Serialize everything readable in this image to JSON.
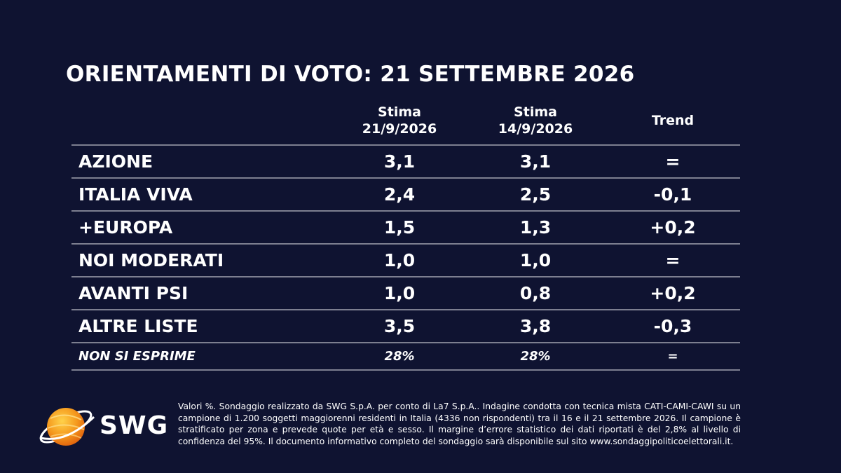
{
  "title": "ORIENTAMENTI DI VOTO: 21 SETTEMBRE 2026",
  "headers": {
    "col1_line1": "Stima",
    "col1_line2": "21/9/2026",
    "col2_line1": "Stima",
    "col2_line2": "14/9/2026",
    "col3": "Trend"
  },
  "rows": [
    {
      "name": "AZIONE",
      "current": "3,1",
      "previous": "3,1",
      "trend": "="
    },
    {
      "name": "ITALIA VIVA",
      "current": "2,4",
      "previous": "2,5",
      "trend": "-0,1"
    },
    {
      "name": "+EUROPA",
      "current": "1,5",
      "previous": "1,3",
      "trend": "+0,2"
    },
    {
      "name": "NOI MODERATI",
      "current": "1,0",
      "previous": "1,0",
      "trend": "="
    },
    {
      "name": "AVANTI PSI",
      "current": "1,0",
      "previous": "0,8",
      "trend": "+0,2"
    },
    {
      "name": "ALTRE LISTE",
      "current": "3,5",
      "previous": "3,8",
      "trend": "-0,3"
    },
    {
      "name": "NON SI ESPRIME",
      "current": "28%",
      "previous": "28%",
      "trend": "="
    }
  ],
  "logo": {
    "text": "SWG",
    "icon": "swg-globe-icon",
    "color_orange": "#f08a1c",
    "color_yellow": "#f7b733"
  },
  "footnote": "Valori %. Sondaggio realizzato da SWG S.p.A. per conto di La7 S.p.A.. Indagine condotta con tecnica mista CATI-CAMI-CAWI su un campione di 1.200 soggetti maggiorenni residenti in Italia (4336 non rispondenti) tra il 16 e il 21 settembre 2026. Il campione è stratificato per zona e prevede quote per età e sesso. Il margine d’errore statistico dei dati riportati è del 2,8% al livello di confidenza del 95%. Il documento informativo completo del sondaggio sarà disponibile sul sito www.sondaggipoliticoelettorali.it.",
  "colors": {
    "background": "#0f1331",
    "text": "#ffffff",
    "divider": "#7d7f90"
  },
  "chart_data": {
    "type": "table",
    "title": "ORIENTAMENTI DI VOTO: 21 SETTEMBRE 2026",
    "columns": [
      "Stima 21/9/2026",
      "Stima 14/9/2026",
      "Trend"
    ],
    "categories": [
      "AZIONE",
      "ITALIA VIVA",
      "+EUROPA",
      "NOI MODERATI",
      "AVANTI PSI",
      "ALTRE LISTE",
      "NON SI ESPRIME"
    ],
    "series": [
      {
        "name": "Stima 21/9/2026",
        "values": [
          3.1,
          2.4,
          1.5,
          1.0,
          1.0,
          3.5,
          28
        ]
      },
      {
        "name": "Stima 14/9/2026",
        "values": [
          3.1,
          2.5,
          1.3,
          1.0,
          0.8,
          3.8,
          28
        ]
      },
      {
        "name": "Trend",
        "values": [
          0,
          -0.1,
          0.2,
          0,
          0.2,
          -0.3,
          0
        ]
      }
    ]
  }
}
